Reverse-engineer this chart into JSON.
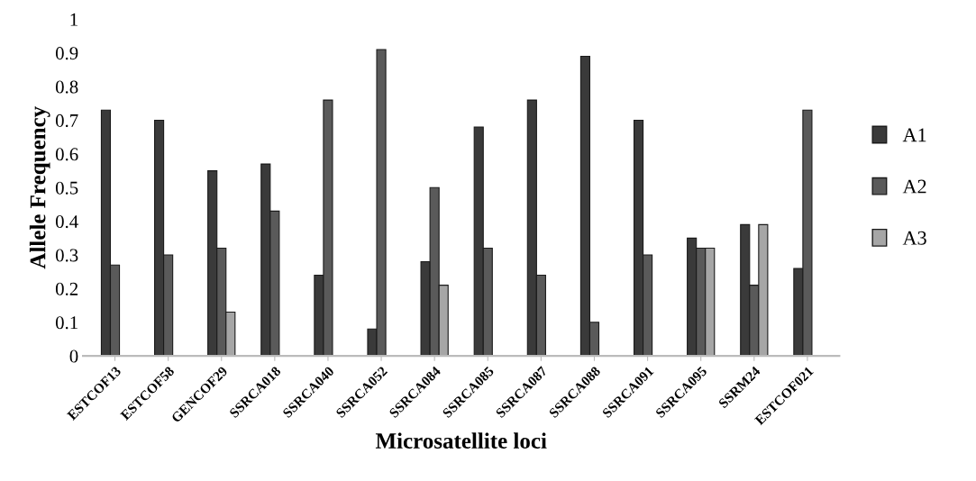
{
  "chart_data": {
    "type": "bar",
    "xlabel": "Microsatellite loci",
    "ylabel": "Allele Frequency",
    "categories": [
      "ESTCOF13",
      "ESTCOF58",
      "GENCOF29",
      "SSRCA018",
      "SSRCA040",
      "SSRCA052",
      "SSRCA084",
      "SSRCA085",
      "SSRCA087",
      "SSRCA088",
      "SSRCA091",
      "SSRCA095",
      "SSRM24",
      "ESTCOF021"
    ],
    "series": [
      {
        "name": "A1",
        "color": "#3a3a3a",
        "values": [
          0.73,
          0.7,
          0.55,
          0.57,
          0.24,
          0.08,
          0.28,
          0.68,
          0.76,
          0.89,
          0.7,
          0.35,
          0.39,
          0.26
        ]
      },
      {
        "name": "A2",
        "color": "#5a5a5a",
        "values": [
          0.27,
          0.3,
          0.32,
          0.43,
          0.76,
          0.91,
          0.5,
          0.32,
          0.24,
          0.1,
          0.3,
          0.32,
          0.21,
          0.73
        ]
      },
      {
        "name": "A3",
        "color": "#a6a6a6",
        "values": [
          null,
          null,
          0.13,
          null,
          null,
          null,
          0.21,
          null,
          null,
          null,
          null,
          0.32,
          0.39,
          null
        ]
      }
    ],
    "ylim": [
      0,
      1
    ],
    "yticks": [
      0,
      0.1,
      0.2,
      0.3,
      0.4,
      0.5,
      0.6,
      0.7,
      0.8,
      0.9,
      1
    ],
    "grid": false,
    "legend": "right"
  }
}
